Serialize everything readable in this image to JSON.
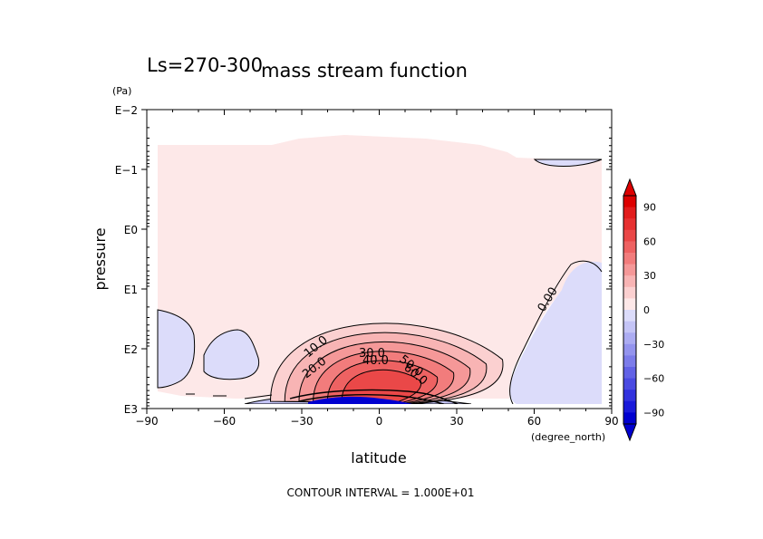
{
  "chart_data": {
    "type": "contour",
    "title": "mass stream function",
    "subtitle": "Ls=270-300",
    "xlabel": "latitude",
    "xunit": "(degree_north)",
    "ylabel": "pressure",
    "yunit": "(Pa)",
    "xlim": [
      -90,
      90
    ],
    "xticks": [
      -90,
      -60,
      -30,
      0,
      30,
      60,
      90
    ],
    "xtick_labels": [
      "−90",
      "−60",
      "−30",
      "0",
      "30",
      "60",
      "90"
    ],
    "ylim": [
      1000,
      0.01
    ],
    "yscale": "log",
    "yticks": [
      0.01,
      0.1,
      1,
      10,
      100,
      1000
    ],
    "ytick_labels": [
      "E−2",
      "E−1",
      "E0",
      "E1",
      "E2",
      "E3"
    ],
    "contour_interval_text": "CONTOUR INTERVAL = 1.000E+01",
    "contour_labels": [
      "10.0",
      "20.0",
      "30.0",
      "40.0",
      "50.0",
      "60.0",
      "0.00"
    ],
    "colorbar": {
      "tick_values": [
        90,
        60,
        30,
        0,
        -30,
        -60,
        -90
      ],
      "tick_labels": [
        "90",
        "60",
        "30",
        "0",
        "−30",
        "−60",
        "−90"
      ],
      "levels": [
        100,
        90,
        80,
        70,
        60,
        50,
        40,
        30,
        20,
        10,
        0,
        -10,
        -20,
        -30,
        -40,
        -50,
        -60,
        -70,
        -80,
        -90,
        -100
      ],
      "colors_positive": [
        "#fde8e8",
        "#fbd0d0",
        "#f8b4b4",
        "#f59898",
        "#f27c7c",
        "#ee6262",
        "#ea4848",
        "#e63030",
        "#e21c1c",
        "#dd0000"
      ],
      "colors_negative": [
        "#dcdcfa",
        "#c4c4f6",
        "#acacf2",
        "#9494ee",
        "#7c7cea",
        "#6262e6",
        "#4a4ae2",
        "#3232de",
        "#1a1ada",
        "#0000d0"
      ]
    },
    "max_value": 67,
    "max_location": {
      "lat": 0,
      "pressure": 500
    }
  }
}
